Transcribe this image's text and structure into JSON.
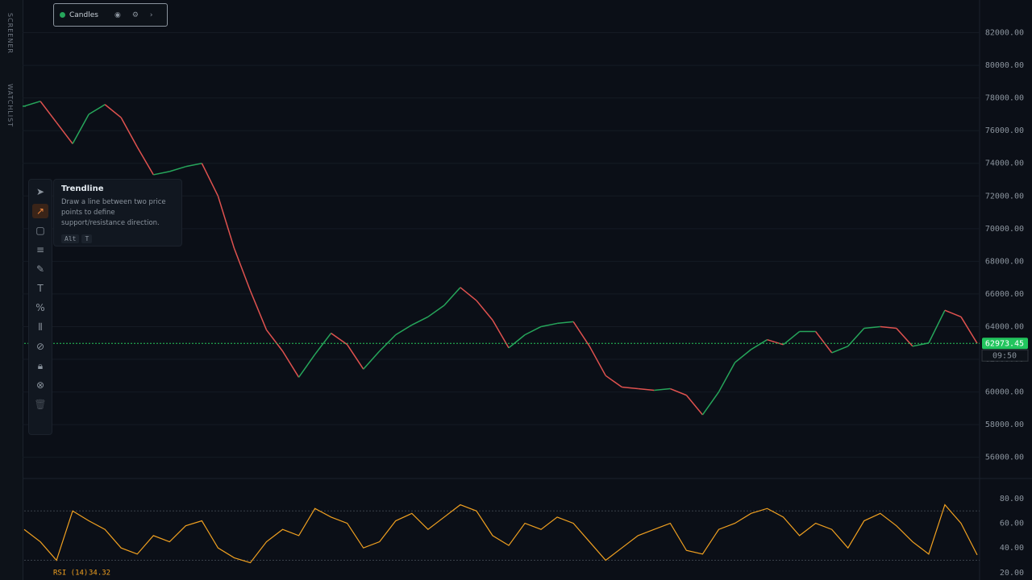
{
  "sidebar": [
    "SCREENER",
    "WATCHLIST"
  ],
  "legend": {
    "label": "Candles"
  },
  "tooltip": {
    "title": "Trendline",
    "text": "Draw a line between two price points to define support/resistance direction.",
    "keys": [
      "Alt",
      "T"
    ]
  },
  "chart_data": [
    {
      "type": "line",
      "name": "Candles",
      "up_color": "#26a65b",
      "down_color": "#e0524f",
      "values": [
        77500,
        77800,
        76500,
        75200,
        77000,
        77600,
        76800,
        75000,
        73300,
        73500,
        73800,
        74000,
        72000,
        68800,
        66200,
        63800,
        62500,
        60900,
        62300,
        63600,
        62900,
        61400,
        62500,
        63500,
        64100,
        64600,
        65300,
        66400,
        65600,
        64400,
        62700,
        63500,
        64000,
        64200,
        64300,
        62800,
        61000,
        60300,
        60200,
        60100,
        60200,
        59800,
        58600,
        60000,
        61800,
        62600,
        63200,
        62900,
        63700,
        63700,
        62400,
        62800,
        63900,
        64000,
        63900,
        62800,
        63000,
        65000,
        64600,
        62973.45
      ],
      "last_price": 62973.45,
      "last_price_label": "62973.45",
      "countdown": "09:50",
      "ylim": [
        54800,
        84000
      ],
      "yticks": [
        {
          "value": 56000,
          "label": "56000.00"
        },
        {
          "value": 58000,
          "label": "58000.00"
        },
        {
          "value": 60000,
          "label": "60000.00"
        },
        {
          "value": 62000,
          "label": "62000.00"
        },
        {
          "value": 64000,
          "label": "64000.00"
        },
        {
          "value": 66000,
          "label": "66000.00"
        },
        {
          "value": 68000,
          "label": "68000.00"
        },
        {
          "value": 70000,
          "label": "70000.00"
        },
        {
          "value": 72000,
          "label": "72000.00"
        },
        {
          "value": 74000,
          "label": "74000.00"
        },
        {
          "value": 76000,
          "label": "76000.00"
        },
        {
          "value": 78000,
          "label": "78000.00"
        },
        {
          "value": 80000,
          "label": "80000.00"
        },
        {
          "value": 82000,
          "label": "82000.00"
        }
      ],
      "grid": true
    },
    {
      "type": "line",
      "name": "RSI (14)",
      "color": "#f0a020",
      "last_value": 34.32,
      "values": [
        55,
        45,
        30,
        70,
        62,
        55,
        40,
        35,
        50,
        45,
        58,
        62,
        40,
        32,
        28,
        45,
        55,
        50,
        72,
        65,
        60,
        40,
        45,
        62,
        68,
        55,
        65,
        75,
        70,
        50,
        42,
        60,
        55,
        65,
        60,
        45,
        30,
        40,
        50,
        55,
        60,
        38,
        35,
        55,
        60,
        68,
        72,
        65,
        50,
        60,
        55,
        40,
        62,
        68,
        58,
        45,
        35,
        75,
        60,
        34.32
      ],
      "levels": [
        30,
        70
      ],
      "ylim": [
        14,
        95
      ],
      "yticks": [
        {
          "value": 20,
          "label": "20.00"
        },
        {
          "value": 40,
          "label": "40.00"
        },
        {
          "value": 60,
          "label": "60.00"
        },
        {
          "value": 80,
          "label": "80.00"
        }
      ]
    }
  ]
}
